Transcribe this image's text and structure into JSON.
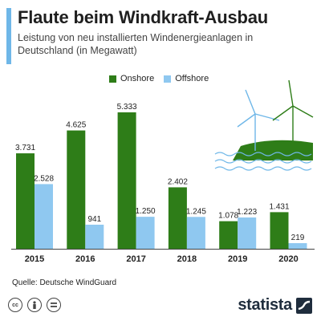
{
  "header": {
    "title": "Flaute beim Windkraft-Ausbau",
    "subtitle": "Leistung von neu installierten Windenergieanlagen in Deutschland (in Megawatt)"
  },
  "legend": {
    "onshore": "Onshore",
    "offshore": "Offshore"
  },
  "footer": {
    "source": "Quelle: Deutsche WindGuard",
    "brand": "statista"
  },
  "colors": {
    "onshore": "#2e7d18",
    "offshore": "#8fc8f0",
    "accent": "#6fb7e8"
  },
  "chart_data": {
    "type": "bar",
    "categories": [
      "2015",
      "2016",
      "2017",
      "2018",
      "2019",
      "2020"
    ],
    "series": [
      {
        "name": "Onshore",
        "values": [
          3731,
          4625,
          5333,
          2402,
          1078,
          1431
        ],
        "labels": [
          "3.731",
          "4.625",
          "5.333",
          "2.402",
          "1.078",
          "1.431"
        ]
      },
      {
        "name": "Offshore",
        "values": [
          2528,
          941,
          1250,
          1245,
          1223,
          219
        ],
        "labels": [
          "2.528",
          "941",
          "1.250",
          "1.245",
          "1.223",
          "219"
        ]
      }
    ],
    "ylim": [
      0,
      5333
    ]
  }
}
